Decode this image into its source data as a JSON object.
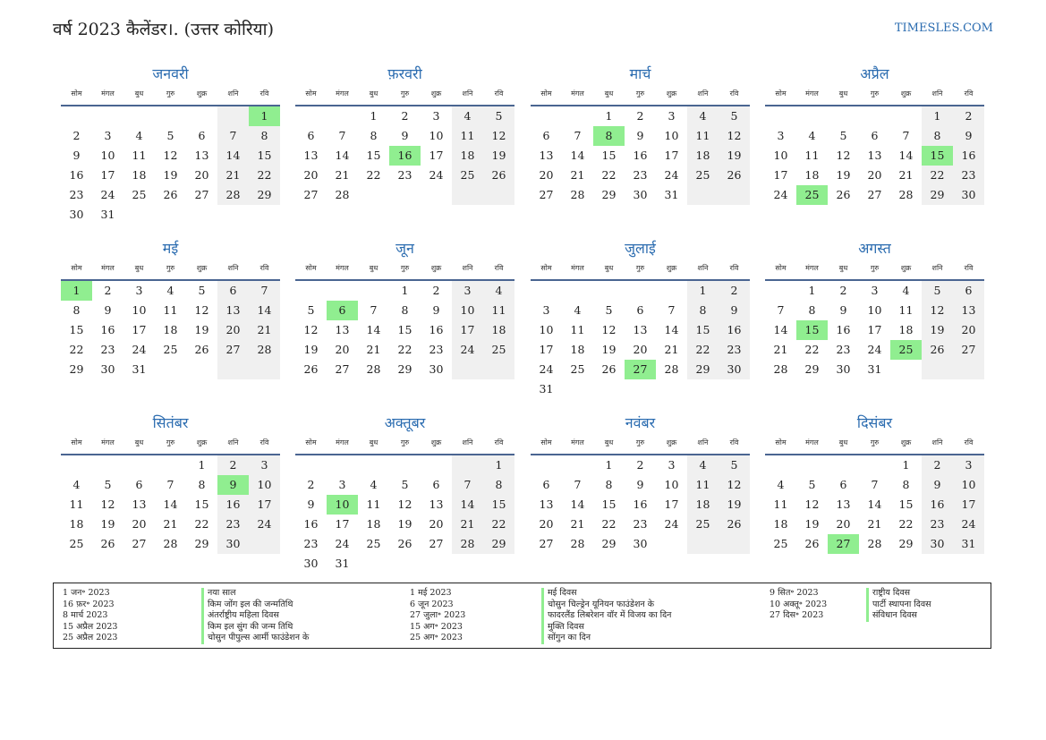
{
  "header": {
    "title": "वर्ष 2023 कैलेंडर।. (उत्तर कोरिया)",
    "site": "TIMESLES.COM"
  },
  "weekdays": [
    "सोम",
    "मंगल",
    "बुध",
    "गुरु",
    "शुक्र",
    "शनि",
    "रवि"
  ],
  "months": [
    {
      "name": "जनवरी",
      "offset": 6,
      "days": 31,
      "holidays": [
        1
      ]
    },
    {
      "name": "फ़रवरी",
      "offset": 2,
      "days": 28,
      "holidays": [
        16
      ]
    },
    {
      "name": "मार्च",
      "offset": 2,
      "days": 31,
      "holidays": [
        8
      ]
    },
    {
      "name": "अप्रैल",
      "offset": 5,
      "days": 30,
      "holidays": [
        15,
        25
      ]
    },
    {
      "name": "मई",
      "offset": 0,
      "days": 31,
      "holidays": [
        1
      ]
    },
    {
      "name": "जून",
      "offset": 3,
      "days": 30,
      "holidays": [
        6
      ]
    },
    {
      "name": "जुलाई",
      "offset": 5,
      "days": 31,
      "holidays": [
        27
      ]
    },
    {
      "name": "अगस्त",
      "offset": 1,
      "days": 31,
      "holidays": [
        15,
        25
      ]
    },
    {
      "name": "सितंबर",
      "offset": 4,
      "days": 30,
      "holidays": [
        9
      ]
    },
    {
      "name": "अक्तूबर",
      "offset": 6,
      "days": 31,
      "holidays": [
        10
      ]
    },
    {
      "name": "नवंबर",
      "offset": 2,
      "days": 30,
      "holidays": []
    },
    {
      "name": "दिसंबर",
      "offset": 4,
      "days": 31,
      "holidays": [
        27
      ]
    }
  ],
  "holiday_list": {
    "col1_dates": [
      "1 जन॰ 2023",
      "16 फ़र॰ 2023",
      "8 मार्च 2023",
      "15 अप्रैल 2023",
      "25 अप्रैल 2023"
    ],
    "col1_names": [
      "नया साल",
      "किम जोंग इल की जन्मतिथि",
      "अंतर्राष्ट्रीय महिला दिवस",
      "किम इल सुंग की जन्म तिथि",
      "चोसुन पीपुल्स आर्मी फाउंडेशन के"
    ],
    "col2_dates": [
      "1 मई 2023",
      "6 जून 2023",
      "27 जुला॰ 2023",
      "15 अग॰ 2023",
      "25 अग॰ 2023"
    ],
    "col2_names": [
      "मई दिवस",
      "चोसुन चिल्ड्रेन यूनियन फाउंडेशन के",
      "फादरलैंड लिबरेशन वॉर में विजय का दिन",
      "मुक्ति दिवस",
      "सोंगुन का दिन"
    ],
    "col3_dates": [
      "9 सित॰ 2023",
      "10 अक्तू॰ 2023",
      "27 दिस॰ 2023"
    ],
    "col3_names": [
      "राष्ट्रीय दिवस",
      "पार्टी स्थापना दिवस",
      "संविधान दिवस"
    ]
  }
}
